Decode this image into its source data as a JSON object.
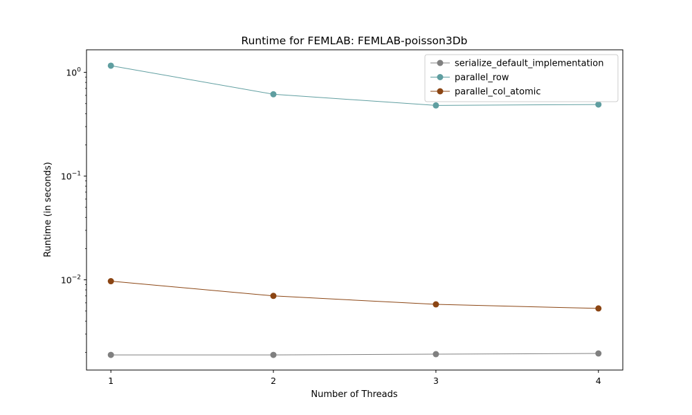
{
  "chart_data": {
    "type": "line",
    "title": "Runtime for FEMLAB: FEMLAB-poisson3Db",
    "xlabel": "Number of Threads",
    "ylabel": "Runtime (in seconds)",
    "x": [
      1,
      2,
      3,
      4
    ],
    "x_tick_labels": [
      "1",
      "2",
      "3",
      "4"
    ],
    "xlim": [
      0.85,
      4.15
    ],
    "y_scale": "log",
    "ylim": [
      0.00135,
      1.65
    ],
    "y_tick_labels": [
      {
        "value": 1,
        "base": "10",
        "exp": "0"
      },
      {
        "value": 0.1,
        "base": "10",
        "exp": "−1"
      },
      {
        "value": 0.01,
        "base": "10",
        "exp": "−2"
      }
    ],
    "grid": false,
    "legend_position": "upper right",
    "series": [
      {
        "name": "serialize_default_implementation",
        "color": "#808080",
        "values": [
          0.00189,
          0.00189,
          0.00192,
          0.00195
        ]
      },
      {
        "name": "parallel_row",
        "color": "#5f9ea0",
        "values": [
          1.16,
          0.615,
          0.48,
          0.49
        ]
      },
      {
        "name": "parallel_col_atomic",
        "color": "#8b4513",
        "values": [
          0.0097,
          0.007,
          0.0058,
          0.0053
        ]
      }
    ]
  }
}
